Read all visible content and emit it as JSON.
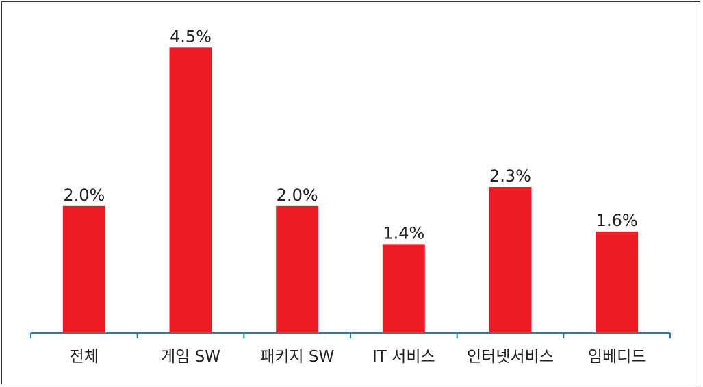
{
  "colors": {
    "bar": "#ED1C24",
    "axis": "#1F7FB6",
    "text": "#222222",
    "border": "#333333"
  },
  "chart_data": {
    "type": "bar",
    "title": "",
    "xlabel": "",
    "ylabel": "",
    "categories": [
      "전체",
      "게임 SW",
      "패키지 SW",
      "IT 서비스",
      "인터넷서비스",
      "임베디드"
    ],
    "values": [
      2.0,
      4.5,
      2.0,
      1.4,
      2.3,
      1.6
    ],
    "value_labels": [
      "2.0%",
      "4.5%",
      "2.0%",
      "1.4%",
      "2.3%",
      "1.6%"
    ],
    "ylim": [
      0,
      5
    ],
    "grid": false,
    "legend": "none"
  }
}
